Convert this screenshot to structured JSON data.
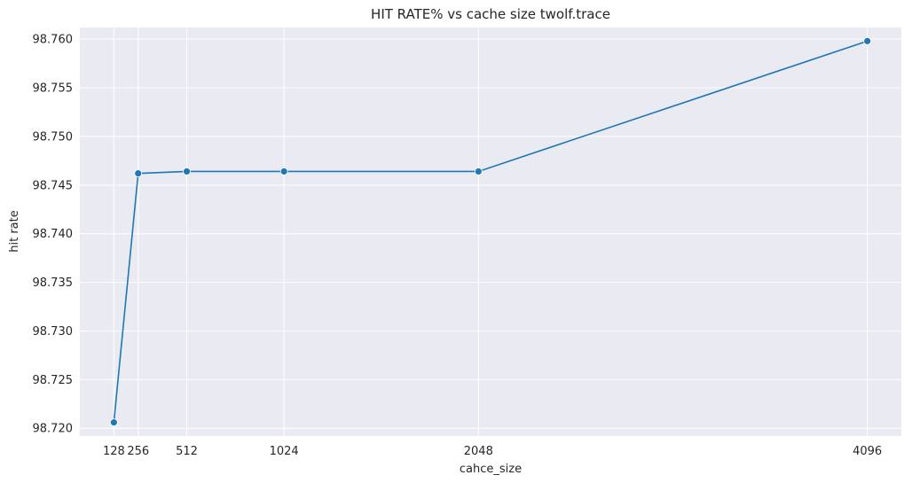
{
  "chart_data": {
    "type": "line",
    "title": "HIT RATE% vs cache size twolf.trace",
    "xlabel": "cahce_size",
    "ylabel": "hit rate",
    "x": [
      128,
      256,
      512,
      1024,
      2048,
      4096
    ],
    "xticks": [
      "128",
      "256",
      "512",
      "1024",
      "2048",
      "4096"
    ],
    "series": [
      {
        "values": [
          98.7206,
          98.7462,
          98.7464,
          98.7464,
          98.7464,
          98.7598
        ],
        "color": "#1f77b4"
      }
    ],
    "yticks": [
      "98.720",
      "98.725",
      "98.730",
      "98.735",
      "98.740",
      "98.745",
      "98.750",
      "98.755",
      "98.760"
    ],
    "ylim": [
      98.7192,
      98.7612
    ],
    "xlim": [
      -51.2,
      4275.2
    ],
    "grid": true,
    "background": "#eaeaf2",
    "grid_color": "#ffffff"
  }
}
